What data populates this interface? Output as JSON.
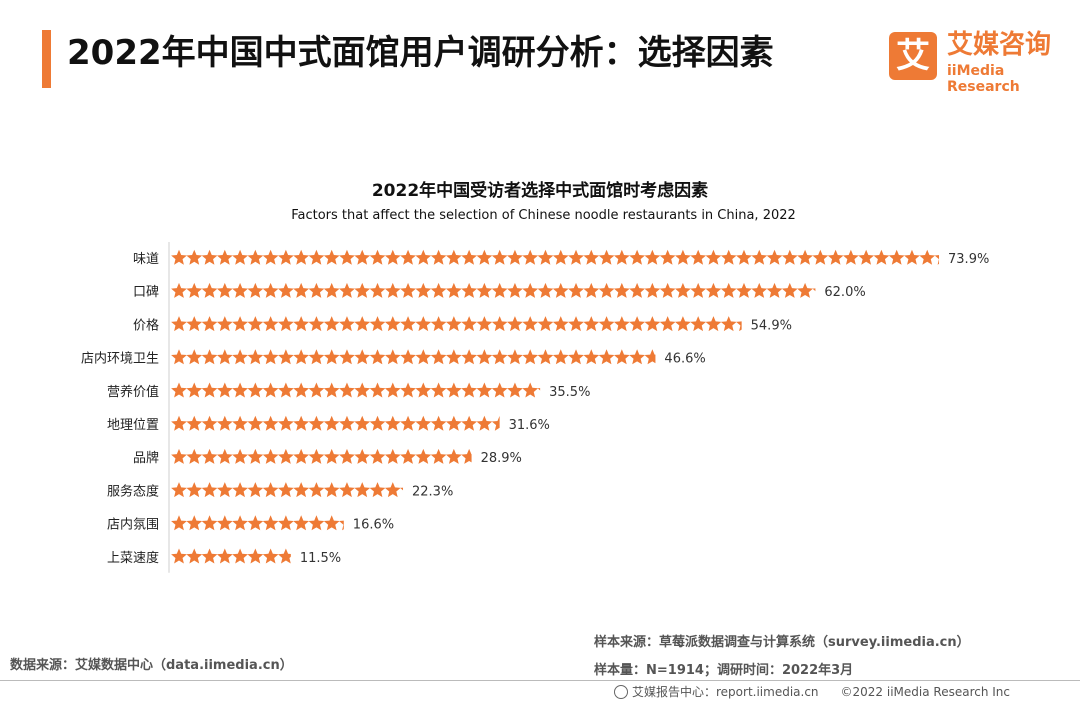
{
  "header": {
    "title": "2022年中国中式面馆用户调研分析：选择因素",
    "logo_cn": "艾媒咨询",
    "logo_en": "iiMedia Research",
    "logo_mark": "艾"
  },
  "chart_data": {
    "type": "bar",
    "title": "2022年中国受访者选择中式面馆时考虑因素",
    "subtitle": "Factors that affect the selection of Chinese noodle restaurants in China, 2022",
    "categories": [
      "味道",
      "口碑",
      "价格",
      "店内环境卫生",
      "营养价值",
      "地理位置",
      "品牌",
      "服务态度",
      "店内氛围",
      "上菜速度"
    ],
    "values": [
      73.9,
      62.0,
      54.9,
      46.6,
      35.5,
      31.6,
      28.9,
      22.3,
      16.6,
      11.5
    ],
    "value_labels": [
      "73.9%",
      "62.0%",
      "54.9%",
      "46.6%",
      "35.5%",
      "31.6%",
      "28.9%",
      "22.3%",
      "16.6%",
      "11.5%"
    ],
    "unit": "%",
    "mark": "star",
    "color": "#ee7a35"
  },
  "footer": {
    "data_source": "数据来源：艾媒数据中心（data.iimedia.cn）",
    "sample_source": "样本来源：草莓派数据调查与计算系统（survey.iimedia.cn）",
    "sample_info": "样本量：N=1914；调研时间：2022年3月",
    "report_center": "艾媒报告中心：report.iimedia.cn",
    "copyright": "©2022 iiMedia Research Inc"
  }
}
